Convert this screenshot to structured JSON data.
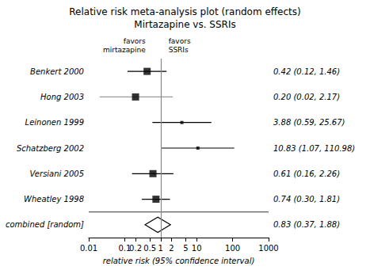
{
  "chart_data": {
    "type": "forest",
    "title": "Relative risk meta-analysis plot (random effects)",
    "subtitle": "Mirtazapine vs. SSRIs",
    "xlabel": "relative risk (95% confidence interval)",
    "categories": [
      "Benkert 2000",
      "Hong 2003",
      "Leinonen 1999",
      "Schatzberg 2002",
      "Versiani 2005",
      "Wheatley 1998",
      "combined [random]"
    ],
    "series": [
      {
        "marker": "square",
        "color": "#000000",
        "values": [
          0.42,
          0.2,
          null,
          null,
          0.61,
          0.74,
          null
        ],
        "ci_lo": [
          0.12,
          0.02,
          null,
          null,
          0.16,
          0.3,
          null
        ],
        "ci_hi": [
          1.46,
          2.17,
          null,
          null,
          2.26,
          1.81,
          null
        ],
        "value_labels": [
          "0.42 (0.12, 1.46)",
          "0.20 (0.02, 2.17)",
          null,
          null,
          "0.61 (0.16, 2.26)",
          "0.74 (0.30, 1.81)",
          null
        ],
        "colors": [
          "#000000",
          "#999999",
          null,
          null,
          "#000000",
          "#000000",
          null
        ]
      },
      {
        "marker": "small_square",
        "color": "#000000",
        "values": [
          null,
          null,
          3.88,
          10.83,
          null,
          null,
          null
        ],
        "ci_lo": [
          null,
          null,
          0.59,
          1.07,
          null,
          null,
          null
        ],
        "ci_hi": [
          null,
          null,
          25.67,
          110.98,
          null,
          null,
          null
        ],
        "value_labels": [
          null,
          null,
          "3.88 (0.59, 25.67)",
          "10.83 (1.07, 110.98)",
          null,
          null,
          null
        ],
        "colors": [
          null,
          null,
          "#000000",
          "#000000",
          null,
          null,
          null
        ]
      },
      {
        "marker": "diamond",
        "color": "#000000",
        "values": [
          null,
          null,
          null,
          null,
          null,
          null,
          0.83
        ],
        "ci_lo": [
          null,
          null,
          null,
          null,
          null,
          null,
          0.37
        ],
        "ci_hi": [
          null,
          null,
          null,
          null,
          null,
          null,
          1.88
        ],
        "value_labels": [
          null,
          null,
          null,
          null,
          null,
          null,
          "0.83 (0.37, 1.88)"
        ],
        "colors": [
          null,
          null,
          null,
          null,
          null,
          null,
          "#000000"
        ]
      }
    ],
    "log": "x",
    "xlim": [
      0.01,
      1000
    ],
    "xticks": [
      0.01,
      0.1,
      0.2,
      0.5,
      1,
      2,
      5,
      10,
      100,
      1000
    ],
    "ref_line": 1,
    "annotations": [
      {
        "text": "favors\nmirtazapine",
        "x": 0.38
      },
      {
        "text": "favors\nSSRIs",
        "x": 1.65
      }
    ],
    "grid": false
  }
}
